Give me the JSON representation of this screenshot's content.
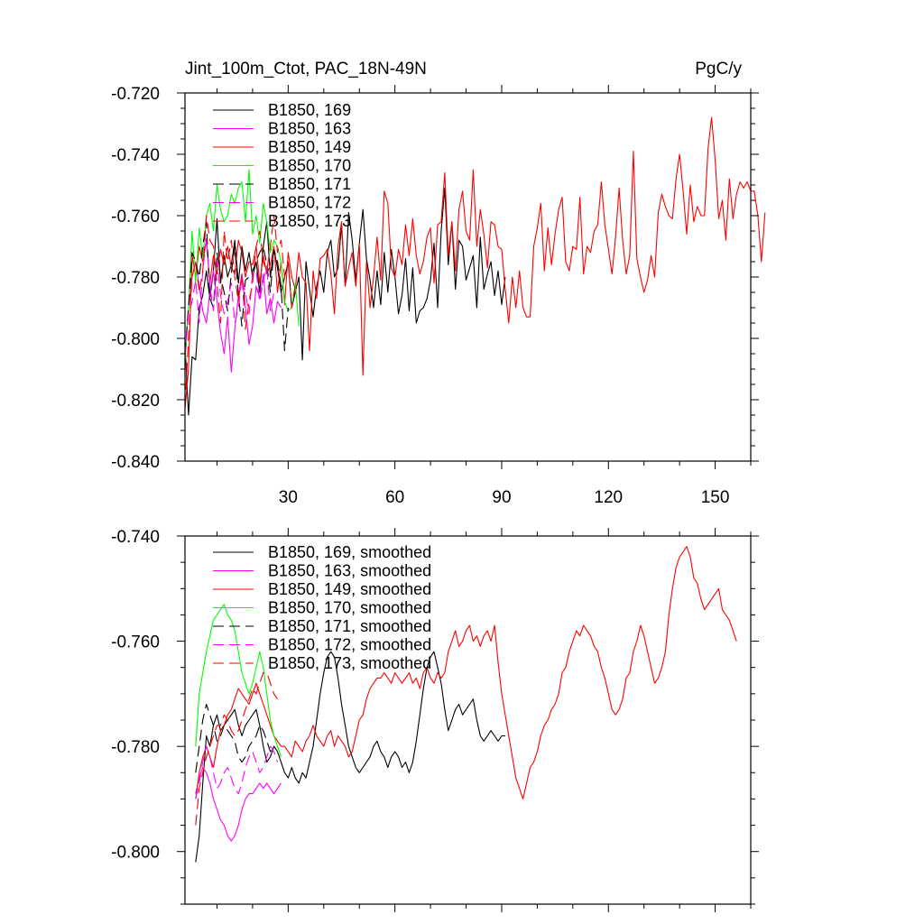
{
  "chart_data": [
    {
      "type": "line",
      "title": "Jint_100m_Ctot, PAC_18N-49N",
      "units": "PgC/y",
      "xlabel": "",
      "ylabel": "",
      "xlim": [
        1,
        160
      ],
      "ylim": [
        -0.84,
        -0.72
      ],
      "xticks": [
        30,
        60,
        90,
        120,
        150
      ],
      "xtick_labels": [
        "30",
        "60",
        "90",
        "120",
        "150"
      ],
      "yticks": [
        -0.84,
        -0.82,
        -0.8,
        -0.78,
        -0.76,
        -0.74,
        -0.72
      ],
      "ytick_labels": [
        "-0.840",
        "-0.820",
        "-0.800",
        "-0.780",
        "-0.760",
        "-0.740",
        "-0.720"
      ],
      "legend_position": "top-left",
      "series": [
        {
          "name": "B1850, 169",
          "color": "#000000",
          "dash": "solid",
          "x_start": 1,
          "values": [
            -0.802,
            -0.825,
            -0.806,
            -0.807,
            -0.79,
            -0.786,
            -0.778,
            -0.787,
            -0.778,
            -0.761,
            -0.782,
            -0.773,
            -0.78,
            -0.776,
            -0.768,
            -0.782,
            -0.77,
            -0.778,
            -0.772,
            -0.78,
            -0.775,
            -0.785,
            -0.77,
            -0.762,
            -0.78,
            -0.771,
            -0.777,
            -0.785,
            -0.78,
            -0.775,
            -0.79,
            -0.785,
            -0.78,
            -0.807,
            -0.775,
            -0.784,
            -0.793,
            -0.783,
            -0.778,
            -0.785,
            -0.772,
            -0.768,
            -0.78,
            -0.777,
            -0.763,
            -0.783,
            -0.759,
            -0.768,
            -0.781,
            -0.769,
            -0.758,
            -0.774,
            -0.781,
            -0.79,
            -0.778,
            -0.789,
            -0.772,
            -0.785,
            -0.771,
            -0.78,
            -0.792,
            -0.786,
            -0.774,
            -0.791,
            -0.777,
            -0.795,
            -0.791,
            -0.79,
            -0.787,
            -0.781,
            -0.769,
            -0.79,
            -0.765,
            -0.751,
            -0.776,
            -0.762,
            -0.784,
            -0.768,
            -0.77,
            -0.781,
            -0.777,
            -0.773,
            -0.79,
            -0.767,
            -0.784,
            -0.779,
            -0.775,
            -0.786,
            -0.778,
            -0.789,
            -0.78
          ]
        },
        {
          "name": "B1850, 163",
          "color": "#ff00ff",
          "dash": "solid",
          "x_start": 1,
          "values": [
            -0.805,
            -0.79,
            -0.78,
            -0.775,
            -0.783,
            -0.791,
            -0.795,
            -0.785,
            -0.778,
            -0.788,
            -0.798,
            -0.805,
            -0.793,
            -0.811,
            -0.797,
            -0.786,
            -0.779,
            -0.79,
            -0.802,
            -0.796,
            -0.783,
            -0.787,
            -0.779,
            -0.792,
            -0.787,
            -0.795,
            -0.788,
            -0.79
          ]
        },
        {
          "name": "B1850, 149",
          "color": "#ff0000",
          "dash": "solid",
          "x_start": 1,
          "values": [
            -0.823,
            -0.81,
            -0.773,
            -0.78,
            -0.77,
            -0.775,
            -0.768,
            -0.782,
            -0.773,
            -0.779,
            -0.771,
            -0.776,
            -0.77,
            -0.777,
            -0.779,
            -0.768,
            -0.772,
            -0.78,
            -0.775,
            -0.776,
            -0.77,
            -0.782,
            -0.773,
            -0.779,
            -0.776,
            -0.77,
            -0.785,
            -0.775,
            -0.789,
            -0.772,
            -0.78,
            -0.784,
            -0.772,
            -0.78,
            -0.782,
            -0.804,
            -0.778,
            -0.787,
            -0.774,
            -0.773,
            -0.771,
            -0.779,
            -0.792,
            -0.77,
            -0.762,
            -0.783,
            -0.777,
            -0.772,
            -0.783,
            -0.769,
            -0.812,
            -0.775,
            -0.79,
            -0.78,
            -0.767,
            -0.781,
            -0.752,
            -0.756,
            -0.777,
            -0.78,
            -0.771,
            -0.776,
            -0.763,
            -0.773,
            -0.761,
            -0.773,
            -0.779,
            -0.775,
            -0.767,
            -0.764,
            -0.782,
            -0.763,
            -0.762,
            -0.746,
            -0.773,
            -0.762,
            -0.778,
            -0.758,
            -0.752,
            -0.765,
            -0.768,
            -0.745,
            -0.77,
            -0.758,
            -0.766,
            -0.777,
            -0.762,
            -0.763,
            -0.77,
            -0.771,
            -0.784,
            -0.795,
            -0.78,
            -0.79,
            -0.778,
            -0.79,
            -0.793,
            -0.793,
            -0.77,
            -0.764,
            -0.756,
            -0.778,
            -0.764,
            -0.776,
            -0.766,
            -0.758,
            -0.754,
            -0.775,
            -0.778,
            -0.77,
            -0.771,
            -0.754,
            -0.779,
            -0.77,
            -0.772,
            -0.765,
            -0.763,
            -0.749,
            -0.763,
            -0.771,
            -0.779,
            -0.767,
            -0.751,
            -0.768,
            -0.779,
            -0.773,
            -0.739,
            -0.774,
            -0.78,
            -0.785,
            -0.781,
            -0.773,
            -0.78,
            -0.759,
            -0.753,
            -0.757,
            -0.76,
            -0.761,
            -0.748,
            -0.74,
            -0.752,
            -0.766,
            -0.75,
            -0.762,
            -0.757,
            -0.76,
            -0.76,
            -0.738,
            -0.728,
            -0.742,
            -0.761,
            -0.755,
            -0.768,
            -0.748,
            -0.761,
            -0.753,
            -0.749,
            -0.751,
            -0.749,
            -0.752,
            -0.752,
            -0.76,
            -0.775,
            -0.759
          ]
        },
        {
          "name": "B1850, 170",
          "color": "#00ff00",
          "dash": "solid",
          "x_start": 1,
          "values": [
            -0.808,
            -0.79,
            -0.765,
            -0.782,
            -0.764,
            -0.774,
            -0.76,
            -0.756,
            -0.765,
            -0.75,
            -0.758,
            -0.762,
            -0.76,
            -0.753,
            -0.756,
            -0.751,
            -0.749,
            -0.762,
            -0.745,
            -0.766,
            -0.76,
            -0.769,
            -0.756,
            -0.762,
            -0.772,
            -0.768,
            -0.77,
            -0.775,
            -0.788,
            -0.791,
            -0.79,
            -0.782,
            -0.796
          ]
        },
        {
          "name": "B1850, 171",
          "color": "#000000",
          "dash": "dashed",
          "x_start": 1,
          "values": [
            -0.805,
            -0.79,
            -0.772,
            -0.775,
            -0.78,
            -0.77,
            -0.762,
            -0.787,
            -0.79,
            -0.772,
            -0.78,
            -0.785,
            -0.791,
            -0.779,
            -0.77,
            -0.786,
            -0.796,
            -0.781,
            -0.78,
            -0.778,
            -0.775,
            -0.772,
            -0.77,
            -0.776,
            -0.785,
            -0.771,
            -0.775,
            -0.783,
            -0.804,
            -0.79
          ]
        },
        {
          "name": "B1850, 172",
          "color": "#ff00ff",
          "dash": "dashed",
          "x_start": 1,
          "values": [
            -0.806,
            -0.792,
            -0.788,
            -0.781,
            -0.795,
            -0.778,
            -0.767,
            -0.783,
            -0.791,
            -0.775,
            -0.786,
            -0.792,
            -0.788,
            -0.782,
            -0.795,
            -0.79,
            -0.78,
            -0.785,
            -0.792,
            -0.779,
            -0.778,
            -0.788,
            -0.781,
            -0.777,
            -0.791,
            -0.785
          ]
        },
        {
          "name": "B1850, 173",
          "color": "#ff0000",
          "dash": "dashed",
          "x_start": 1,
          "values": [
            -0.822,
            -0.8,
            -0.78,
            -0.775,
            -0.785,
            -0.778,
            -0.76,
            -0.768,
            -0.77,
            -0.782,
            -0.795,
            -0.765,
            -0.775,
            -0.768,
            -0.78,
            -0.788,
            -0.779,
            -0.797,
            -0.788,
            -0.782,
            -0.77,
            -0.765,
            -0.775,
            -0.778,
            -0.77,
            -0.76,
            -0.772,
            -0.768,
            -0.78,
            -0.775,
            -0.79,
            -0.783
          ]
        }
      ]
    },
    {
      "type": "line",
      "title": "",
      "xlabel": "",
      "ylabel": "",
      "xlim": [
        1,
        160
      ],
      "ylim": [
        -0.81,
        -0.74
      ],
      "xticks": [
        30,
        60,
        90,
        120,
        150
      ],
      "yticks": [
        -0.8,
        -0.78,
        -0.76,
        -0.74
      ],
      "ytick_labels": [
        "-0.800",
        "-0.780",
        "-0.760",
        "-0.740"
      ],
      "legend_position": "top-left",
      "series": [
        {
          "name": "B1850, 169, smoothed",
          "color": "#000000",
          "dash": "solid",
          "x_start": 4,
          "values": [
            -0.802,
            -0.797,
            -0.787,
            -0.778,
            -0.78,
            -0.776,
            -0.774,
            -0.777,
            -0.776,
            -0.775,
            -0.774,
            -0.773,
            -0.776,
            -0.778,
            -0.776,
            -0.775,
            -0.774,
            -0.773,
            -0.776,
            -0.78,
            -0.783,
            -0.782,
            -0.78,
            -0.781,
            -0.783,
            -0.785,
            -0.786,
            -0.784,
            -0.786,
            -0.787,
            -0.785,
            -0.786,
            -0.783,
            -0.78,
            -0.775,
            -0.77,
            -0.766,
            -0.763,
            -0.762,
            -0.763,
            -0.767,
            -0.772,
            -0.776,
            -0.78,
            -0.782,
            -0.784,
            -0.785,
            -0.784,
            -0.783,
            -0.782,
            -0.78,
            -0.779,
            -0.781,
            -0.782,
            -0.784,
            -0.782,
            -0.781,
            -0.782,
            -0.784,
            -0.783,
            -0.785,
            -0.783,
            -0.779,
            -0.774,
            -0.769,
            -0.765,
            -0.763,
            -0.762,
            -0.765,
            -0.768,
            -0.773,
            -0.777,
            -0.775,
            -0.773,
            -0.772,
            -0.774,
            -0.773,
            -0.772,
            -0.771,
            -0.775,
            -0.778,
            -0.779,
            -0.778,
            -0.777,
            -0.778,
            -0.779,
            -0.778,
            -0.778
          ]
        },
        {
          "name": "B1850, 163, smoothed",
          "color": "#ff00ff",
          "dash": "solid",
          "x_start": 4,
          "values": [
            -0.789,
            -0.786,
            -0.784,
            -0.785,
            -0.787,
            -0.79,
            -0.792,
            -0.794,
            -0.795,
            -0.797,
            -0.798,
            -0.797,
            -0.795,
            -0.792,
            -0.79,
            -0.789,
            -0.789,
            -0.788,
            -0.787,
            -0.788,
            -0.787,
            -0.788,
            -0.789,
            -0.788,
            -0.787
          ]
        },
        {
          "name": "B1850, 149, smoothed",
          "color": "#ff0000",
          "dash": "solid",
          "x_start": 4,
          "values": [
            -0.79,
            -0.785,
            -0.782,
            -0.78,
            -0.782,
            -0.784,
            -0.78,
            -0.777,
            -0.776,
            -0.774,
            -0.773,
            -0.771,
            -0.769,
            -0.77,
            -0.771,
            -0.772,
            -0.77,
            -0.768,
            -0.77,
            -0.772,
            -0.774,
            -0.776,
            -0.778,
            -0.779,
            -0.78,
            -0.78,
            -0.781,
            -0.782,
            -0.779,
            -0.78,
            -0.781,
            -0.779,
            -0.778,
            -0.776,
            -0.778,
            -0.779,
            -0.78,
            -0.778,
            -0.777,
            -0.78,
            -0.778,
            -0.779,
            -0.78,
            -0.782,
            -0.781,
            -0.778,
            -0.775,
            -0.774,
            -0.771,
            -0.769,
            -0.768,
            -0.767,
            -0.767,
            -0.766,
            -0.767,
            -0.768,
            -0.766,
            -0.767,
            -0.768,
            -0.767,
            -0.766,
            -0.768,
            -0.767,
            -0.769,
            -0.766,
            -0.765,
            -0.767,
            -0.768,
            -0.766,
            -0.767,
            -0.766,
            -0.762,
            -0.76,
            -0.758,
            -0.761,
            -0.76,
            -0.758,
            -0.757,
            -0.76,
            -0.759,
            -0.761,
            -0.759,
            -0.758,
            -0.76,
            -0.757,
            -0.764,
            -0.77,
            -0.774,
            -0.778,
            -0.782,
            -0.786,
            -0.788,
            -0.79,
            -0.787,
            -0.784,
            -0.783,
            -0.781,
            -0.778,
            -0.776,
            -0.775,
            -0.773,
            -0.772,
            -0.77,
            -0.766,
            -0.765,
            -0.762,
            -0.76,
            -0.758,
            -0.759,
            -0.757,
            -0.758,
            -0.759,
            -0.761,
            -0.762,
            -0.765,
            -0.767,
            -0.77,
            -0.773,
            -0.774,
            -0.773,
            -0.771,
            -0.767,
            -0.766,
            -0.762,
            -0.76,
            -0.757,
            -0.759,
            -0.762,
            -0.765,
            -0.768,
            -0.767,
            -0.765,
            -0.762,
            -0.755,
            -0.75,
            -0.746,
            -0.744,
            -0.743,
            -0.742,
            -0.744,
            -0.748,
            -0.749,
            -0.752,
            -0.754,
            -0.753,
            -0.752,
            -0.751,
            -0.75,
            -0.754,
            -0.755,
            -0.756,
            -0.758,
            -0.76
          ]
        },
        {
          "name": "B1850, 170, smoothed",
          "color": "#00ff00",
          "dash": "solid",
          "x_start": 4,
          "values": [
            -0.78,
            -0.77,
            -0.766,
            -0.762,
            -0.759,
            -0.756,
            -0.755,
            -0.754,
            -0.753,
            -0.755,
            -0.756,
            -0.758,
            -0.762,
            -0.766,
            -0.768,
            -0.77,
            -0.768,
            -0.765,
            -0.762,
            -0.765,
            -0.77,
            -0.775,
            -0.778,
            -0.78,
            -0.782
          ]
        },
        {
          "name": "B1850, 171, smoothed",
          "color": "#000000",
          "dash": "dashed",
          "x_start": 4,
          "values": [
            -0.785,
            -0.78,
            -0.775,
            -0.772,
            -0.774,
            -0.776,
            -0.779,
            -0.778,
            -0.776,
            -0.777,
            -0.778,
            -0.779,
            -0.782,
            -0.783,
            -0.782,
            -0.78,
            -0.779,
            -0.778,
            -0.776,
            -0.777,
            -0.779,
            -0.781,
            -0.78
          ]
        },
        {
          "name": "B1850, 172, smoothed",
          "color": "#ff00ff",
          "dash": "dashed",
          "x_start": 4,
          "values": [
            -0.79,
            -0.787,
            -0.783,
            -0.78,
            -0.782,
            -0.785,
            -0.788,
            -0.787,
            -0.785,
            -0.784,
            -0.786,
            -0.788,
            -0.789,
            -0.787,
            -0.784,
            -0.782,
            -0.781,
            -0.783,
            -0.785,
            -0.784,
            -0.782,
            -0.78,
            -0.781,
            -0.783
          ]
        },
        {
          "name": "B1850, 173, smoothed",
          "color": "#ff0000",
          "dash": "dashed",
          "x_start": 4,
          "values": [
            -0.795,
            -0.788,
            -0.785,
            -0.782,
            -0.78,
            -0.778,
            -0.776,
            -0.776,
            -0.774,
            -0.775,
            -0.777,
            -0.778,
            -0.777,
            -0.775,
            -0.773,
            -0.771,
            -0.769,
            -0.77,
            -0.768,
            -0.766,
            -0.766,
            -0.768,
            -0.77,
            -0.771
          ]
        }
      ]
    }
  ]
}
